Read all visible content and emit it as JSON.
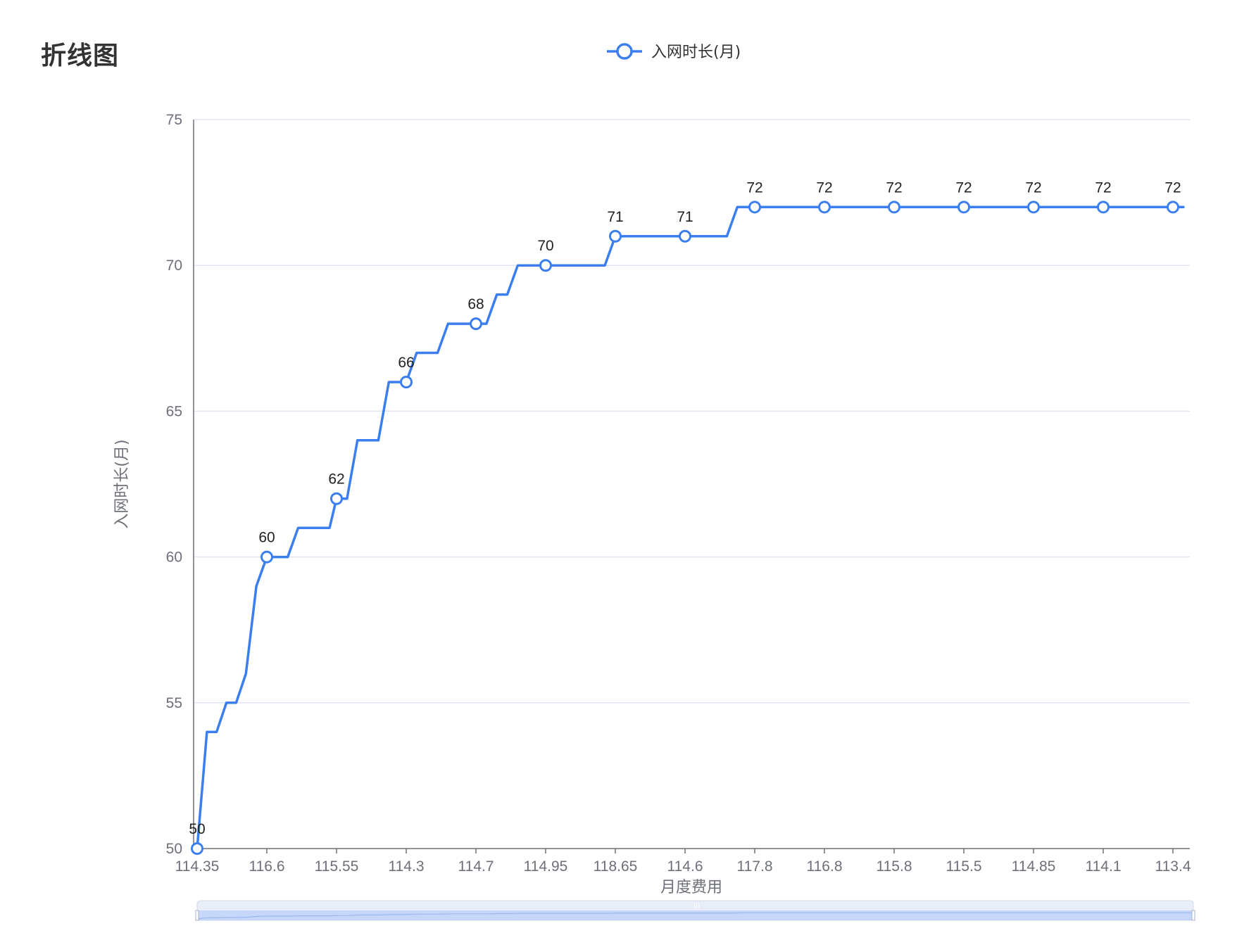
{
  "title": "折线图",
  "chart_data": {
    "type": "line",
    "step": true,
    "xlabel": "月度费用",
    "ylabel": "入网时长(月)",
    "ylim": [
      50,
      75
    ],
    "yticks": [
      50,
      55,
      60,
      65,
      70,
      75
    ],
    "grid": true,
    "legend_position": "top-center",
    "color": "#3b7ef0",
    "categories": [
      "114.35",
      "116.6",
      "115.55",
      "114.3",
      "114.7",
      "114.95",
      "118.65",
      "114.6",
      "117.8",
      "116.8",
      "115.8",
      "115.5",
      "114.85",
      "114.1",
      "113.4"
    ],
    "series": [
      {
        "name": "入网时长(月)",
        "points": [
          {
            "x": 0.0,
            "y": 50,
            "label": "50"
          },
          {
            "x": 0.14,
            "y": 54
          },
          {
            "x": 0.28,
            "y": 54
          },
          {
            "x": 0.42,
            "y": 55
          },
          {
            "x": 0.56,
            "y": 55
          },
          {
            "x": 0.7,
            "y": 56
          },
          {
            "x": 0.85,
            "y": 59
          },
          {
            "x": 1.0,
            "y": 60,
            "label": "60"
          },
          {
            "x": 1.3,
            "y": 60
          },
          {
            "x": 1.45,
            "y": 61
          },
          {
            "x": 1.9,
            "y": 61
          },
          {
            "x": 2.0,
            "y": 62,
            "label": "62"
          },
          {
            "x": 2.15,
            "y": 62
          },
          {
            "x": 2.3,
            "y": 64
          },
          {
            "x": 2.6,
            "y": 64
          },
          {
            "x": 2.75,
            "y": 66
          },
          {
            "x": 3.0,
            "y": 66,
            "label": "66"
          },
          {
            "x": 3.15,
            "y": 67
          },
          {
            "x": 3.45,
            "y": 67
          },
          {
            "x": 3.6,
            "y": 68
          },
          {
            "x": 4.0,
            "y": 68,
            "label": "68"
          },
          {
            "x": 4.15,
            "y": 68
          },
          {
            "x": 4.3,
            "y": 69
          },
          {
            "x": 4.45,
            "y": 69
          },
          {
            "x": 4.6,
            "y": 70
          },
          {
            "x": 5.0,
            "y": 70,
            "label": "70"
          },
          {
            "x": 5.85,
            "y": 70
          },
          {
            "x": 6.0,
            "y": 71,
            "label": "71"
          },
          {
            "x": 7.0,
            "y": 71,
            "label": "71"
          },
          {
            "x": 7.6,
            "y": 71
          },
          {
            "x": 7.75,
            "y": 72
          },
          {
            "x": 8.0,
            "y": 72,
            "label": "72"
          },
          {
            "x": 9.0,
            "y": 72,
            "label": "72"
          },
          {
            "x": 10.0,
            "y": 72,
            "label": "72"
          },
          {
            "x": 11.0,
            "y": 72,
            "label": "72"
          },
          {
            "x": 12.0,
            "y": 72,
            "label": "72"
          },
          {
            "x": 13.0,
            "y": 72,
            "label": "72"
          },
          {
            "x": 14.0,
            "y": 72,
            "label": "72"
          },
          {
            "x": 14.15,
            "y": 72
          }
        ]
      }
    ]
  },
  "data_zoom": {
    "handle_label": "III"
  }
}
